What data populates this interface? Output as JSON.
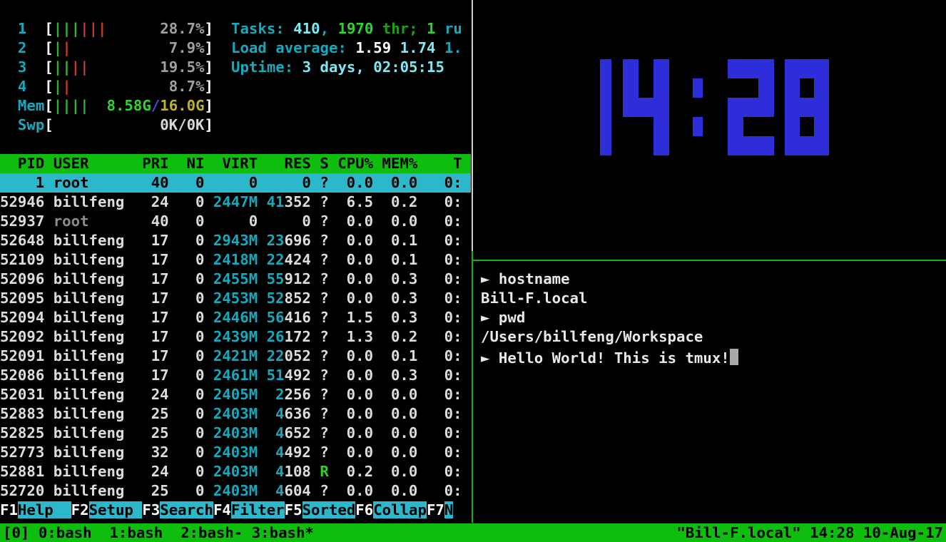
{
  "colors": {
    "background": "#000000",
    "accent_green": "#0FBD0F",
    "accent_cyan": "#2DB7CA",
    "clock_blue": "#2D2DD9",
    "meter_green": "#2FB52F",
    "meter_red": "#C53A2B",
    "text_cyan": "#15A9BD",
    "text_gray": "#A0A0A0",
    "divider_white": "#D4D4C4",
    "divider_green": "#12B412"
  },
  "htop": {
    "meters": [
      {
        "name": "cpu1",
        "label": "1",
        "segs": [
          [
            "|||",
            "bar-green"
          ],
          [
            "|||",
            "bar-red"
          ],
          [
            "      ",
            ""
          ],
          [
            "28.7%",
            "gray"
          ]
        ]
      },
      {
        "name": "cpu2",
        "label": "2",
        "segs": [
          [
            "|",
            "bar-green"
          ],
          [
            "|",
            "bar-red"
          ],
          [
            "          ",
            ""
          ],
          [
            " 7.9%",
            "gray"
          ]
        ]
      },
      {
        "name": "cpu3",
        "label": "3",
        "segs": [
          [
            "||",
            "bar-green"
          ],
          [
            "||",
            "bar-red"
          ],
          [
            "        ",
            ""
          ],
          [
            "19.5%",
            "gray"
          ]
        ]
      },
      {
        "name": "cpu4",
        "label": "4",
        "segs": [
          [
            "|",
            "bar-green"
          ],
          [
            "|",
            "bar-red"
          ],
          [
            "          ",
            ""
          ],
          [
            " 8.7%",
            "gray"
          ]
        ]
      },
      {
        "name": "memory",
        "label": "Mem",
        "segs": [
          [
            "||||",
            "bar-green"
          ],
          [
            "  ",
            ""
          ],
          [
            "8.58G",
            "boldgreen"
          ],
          [
            "/",
            "blue"
          ],
          [
            "16.0G",
            "yellow"
          ]
        ]
      },
      {
        "name": "swap",
        "label": "Swp",
        "segs": [
          [
            "            ",
            ""
          ],
          [
            "0K/0K",
            "boldgray"
          ]
        ]
      }
    ],
    "summary": {
      "tasks": [
        [
          "Tasks: ",
          "cyan"
        ],
        [
          "410",
          "boldcyan"
        ],
        [
          ", ",
          "cyan"
        ],
        [
          "1970",
          "boldgreen"
        ],
        [
          " thr; ",
          "green"
        ],
        [
          "1",
          "boldgreen"
        ],
        [
          " ru",
          "cyan"
        ]
      ],
      "load": [
        [
          "Load average: ",
          "cyan"
        ],
        [
          "1.59 ",
          "boldwhite"
        ],
        [
          "1.74 ",
          "boldcyan"
        ],
        [
          "1.",
          "cyan"
        ]
      ],
      "uptime": [
        [
          "Uptime: ",
          "cyan"
        ],
        [
          "3 days, 02:05:15",
          "boldcyan"
        ]
      ]
    },
    "columns": {
      "pid": "PID",
      "user": "USER",
      "pri": "PRI",
      "ni": "NI",
      "virt": "VIRT",
      "res": "RES",
      "s": "S",
      "cpu": "CPU%",
      "mem": "MEM%",
      "time": "T"
    },
    "processes": [
      {
        "pid": "1",
        "user": "root",
        "pri": "40",
        "ni": "0",
        "virt": "0",
        "virt_cyan": false,
        "res_hi": "",
        "res_lo": "0",
        "s": "?",
        "s_green": false,
        "cpu": "0.0",
        "mem": "0.0",
        "time": "0:",
        "selected": true,
        "dim_user": false
      },
      {
        "pid": "52946",
        "user": "billfeng",
        "pri": "24",
        "ni": "0",
        "virt": "2447M",
        "virt_cyan": true,
        "res_hi": "41",
        "res_lo": "352",
        "s": "?",
        "s_green": false,
        "cpu": "6.5",
        "mem": "0.2",
        "time": "0:",
        "selected": false,
        "dim_user": false
      },
      {
        "pid": "52937",
        "user": "root",
        "pri": "40",
        "ni": "0",
        "virt": "0",
        "virt_cyan": false,
        "res_hi": "",
        "res_lo": "0",
        "s": "?",
        "s_green": false,
        "cpu": "0.0",
        "mem": "0.0",
        "time": "0:",
        "selected": false,
        "dim_user": true
      },
      {
        "pid": "52648",
        "user": "billfeng",
        "pri": "17",
        "ni": "0",
        "virt": "2943M",
        "virt_cyan": true,
        "res_hi": "23",
        "res_lo": "696",
        "s": "?",
        "s_green": false,
        "cpu": "0.0",
        "mem": "0.1",
        "time": "0:",
        "selected": false,
        "dim_user": false
      },
      {
        "pid": "52109",
        "user": "billfeng",
        "pri": "17",
        "ni": "0",
        "virt": "2418M",
        "virt_cyan": true,
        "res_hi": "22",
        "res_lo": "424",
        "s": "?",
        "s_green": false,
        "cpu": "0.0",
        "mem": "0.1",
        "time": "0:",
        "selected": false,
        "dim_user": false
      },
      {
        "pid": "52096",
        "user": "billfeng",
        "pri": "17",
        "ni": "0",
        "virt": "2455M",
        "virt_cyan": true,
        "res_hi": "55",
        "res_lo": "912",
        "s": "?",
        "s_green": false,
        "cpu": "0.0",
        "mem": "0.3",
        "time": "0:",
        "selected": false,
        "dim_user": false
      },
      {
        "pid": "52095",
        "user": "billfeng",
        "pri": "17",
        "ni": "0",
        "virt": "2453M",
        "virt_cyan": true,
        "res_hi": "52",
        "res_lo": "852",
        "s": "?",
        "s_green": false,
        "cpu": "0.0",
        "mem": "0.3",
        "time": "0:",
        "selected": false,
        "dim_user": false
      },
      {
        "pid": "52094",
        "user": "billfeng",
        "pri": "17",
        "ni": "0",
        "virt": "2446M",
        "virt_cyan": true,
        "res_hi": "56",
        "res_lo": "416",
        "s": "?",
        "s_green": false,
        "cpu": "1.5",
        "mem": "0.3",
        "time": "0:",
        "selected": false,
        "dim_user": false
      },
      {
        "pid": "52092",
        "user": "billfeng",
        "pri": "17",
        "ni": "0",
        "virt": "2439M",
        "virt_cyan": true,
        "res_hi": "26",
        "res_lo": "172",
        "s": "?",
        "s_green": false,
        "cpu": "1.3",
        "mem": "0.2",
        "time": "0:",
        "selected": false,
        "dim_user": false
      },
      {
        "pid": "52091",
        "user": "billfeng",
        "pri": "17",
        "ni": "0",
        "virt": "2421M",
        "virt_cyan": true,
        "res_hi": "22",
        "res_lo": "052",
        "s": "?",
        "s_green": false,
        "cpu": "0.0",
        "mem": "0.1",
        "time": "0:",
        "selected": false,
        "dim_user": false
      },
      {
        "pid": "52086",
        "user": "billfeng",
        "pri": "17",
        "ni": "0",
        "virt": "2461M",
        "virt_cyan": true,
        "res_hi": "51",
        "res_lo": "492",
        "s": "?",
        "s_green": false,
        "cpu": "0.0",
        "mem": "0.3",
        "time": "0:",
        "selected": false,
        "dim_user": false
      },
      {
        "pid": "52031",
        "user": "billfeng",
        "pri": "24",
        "ni": "0",
        "virt": "2405M",
        "virt_cyan": true,
        "res_hi": "2",
        "res_lo": "256",
        "s": "?",
        "s_green": false,
        "cpu": "0.0",
        "mem": "0.0",
        "time": "0:",
        "selected": false,
        "dim_user": false
      },
      {
        "pid": "52883",
        "user": "billfeng",
        "pri": "25",
        "ni": "0",
        "virt": "2403M",
        "virt_cyan": true,
        "res_hi": "4",
        "res_lo": "636",
        "s": "?",
        "s_green": false,
        "cpu": "0.0",
        "mem": "0.0",
        "time": "0:",
        "selected": false,
        "dim_user": false
      },
      {
        "pid": "52825",
        "user": "billfeng",
        "pri": "25",
        "ni": "0",
        "virt": "2403M",
        "virt_cyan": true,
        "res_hi": "4",
        "res_lo": "652",
        "s": "?",
        "s_green": false,
        "cpu": "0.0",
        "mem": "0.0",
        "time": "0:",
        "selected": false,
        "dim_user": false
      },
      {
        "pid": "52773",
        "user": "billfeng",
        "pri": "32",
        "ni": "0",
        "virt": "2403M",
        "virt_cyan": true,
        "res_hi": "4",
        "res_lo": "492",
        "s": "?",
        "s_green": false,
        "cpu": "0.0",
        "mem": "0.0",
        "time": "0:",
        "selected": false,
        "dim_user": false
      },
      {
        "pid": "52881",
        "user": "billfeng",
        "pri": "24",
        "ni": "0",
        "virt": "2403M",
        "virt_cyan": true,
        "res_hi": "4",
        "res_lo": "108",
        "s": "R",
        "s_green": true,
        "cpu": "0.2",
        "mem": "0.0",
        "time": "0:",
        "selected": false,
        "dim_user": false
      },
      {
        "pid": "52720",
        "user": "billfeng",
        "pri": "25",
        "ni": "0",
        "virt": "2403M",
        "virt_cyan": true,
        "res_hi": "4",
        "res_lo": "604",
        "s": "?",
        "s_green": false,
        "cpu": "0.0",
        "mem": "0.0",
        "time": "0:",
        "selected": false,
        "dim_user": false
      }
    ],
    "fkeys": [
      {
        "key": "F1",
        "label": "Help  ",
        "action": "help"
      },
      {
        "key": "F2",
        "label": "Setup ",
        "action": "setup"
      },
      {
        "key": "F3",
        "label": "Search",
        "action": "search"
      },
      {
        "key": "F4",
        "label": "Filter",
        "action": "filter"
      },
      {
        "key": "F5",
        "label": "Sorted",
        "action": "sorted"
      },
      {
        "key": "F6",
        "label": "Collap",
        "action": "collapse"
      },
      {
        "key": "F7",
        "label": "N",
        "action": "nice"
      }
    ]
  },
  "clock": {
    "time": "14:28"
  },
  "shell": {
    "prompt": "►",
    "lines": [
      {
        "type": "cmd",
        "text": "hostname",
        "cursor": false
      },
      {
        "type": "out",
        "text": "Bill-F.local",
        "cursor": false
      },
      {
        "type": "cmd",
        "text": "pwd",
        "cursor": false
      },
      {
        "type": "out",
        "text": "/Users/billfeng/Workspace",
        "cursor": false
      },
      {
        "type": "cmd",
        "text": "Hello World! This is tmux!",
        "cursor": true
      }
    ]
  },
  "tmux_status": {
    "session": "[0] ",
    "windows": [
      "0:bash",
      "1:bash",
      "2:bash-",
      "3:bash*"
    ],
    "right": "\"Bill-F.local\" 14:28 10-Aug-17"
  }
}
